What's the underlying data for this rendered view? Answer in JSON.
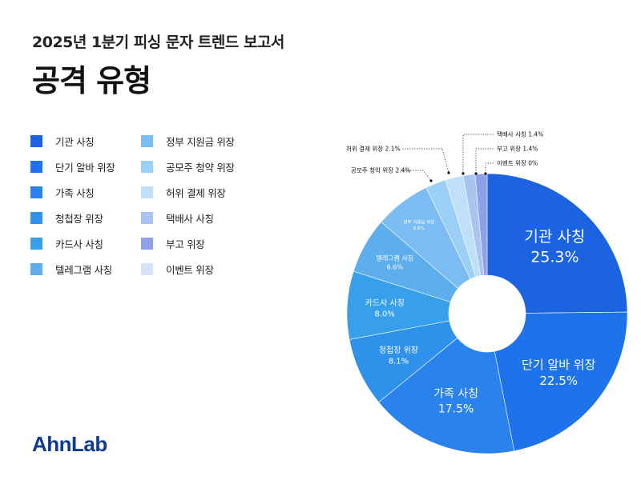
{
  "header": {
    "subtitle": "2025년 1분기 피싱 문자 트렌드 보고서",
    "title": "공격 유형"
  },
  "logo": {
    "text": "AhnLab"
  },
  "chart_data": {
    "type": "pie",
    "donut": true,
    "legend_placement": "left",
    "categories": [
      "기관 사칭",
      "단기 알바 위장",
      "가족 사칭",
      "청첩장 위장",
      "카드사 사칭",
      "텔레그램 사칭",
      "정부 지원금 위장",
      "공모주 청약 위장",
      "허위 결제 위장",
      "택배사 사칭",
      "부고 위장",
      "이벤트 위장"
    ],
    "values": [
      25.3,
      22.5,
      17.5,
      8.1,
      8.0,
      6.6,
      6.6,
      2.4,
      2.1,
      1.4,
      1.4,
      0
    ],
    "value_labels": [
      "25.3%",
      "22.5%",
      "17.5%",
      "8.1%",
      "8.0%",
      "6.6%",
      "6.6%",
      "2.4%",
      "2.1%",
      "1.4%",
      "1.4%",
      "0%"
    ],
    "callout_labels": [
      "공모주 청약 위장 2.4%",
      "허위 결제 위장 2.1%",
      "택배사 사칭 1.4%",
      "부고 위장 1.4%",
      "이벤트 위장 0%"
    ],
    "colors": [
      "#1b63e0",
      "#1e72ea",
      "#2a82ec",
      "#2f92ea",
      "#38a0ea",
      "#5eaeee",
      "#7bbdf2",
      "#9ccff6",
      "#bfe0f8",
      "#a9c4ee",
      "#8fa0ea",
      "#d6e2f6"
    ]
  }
}
